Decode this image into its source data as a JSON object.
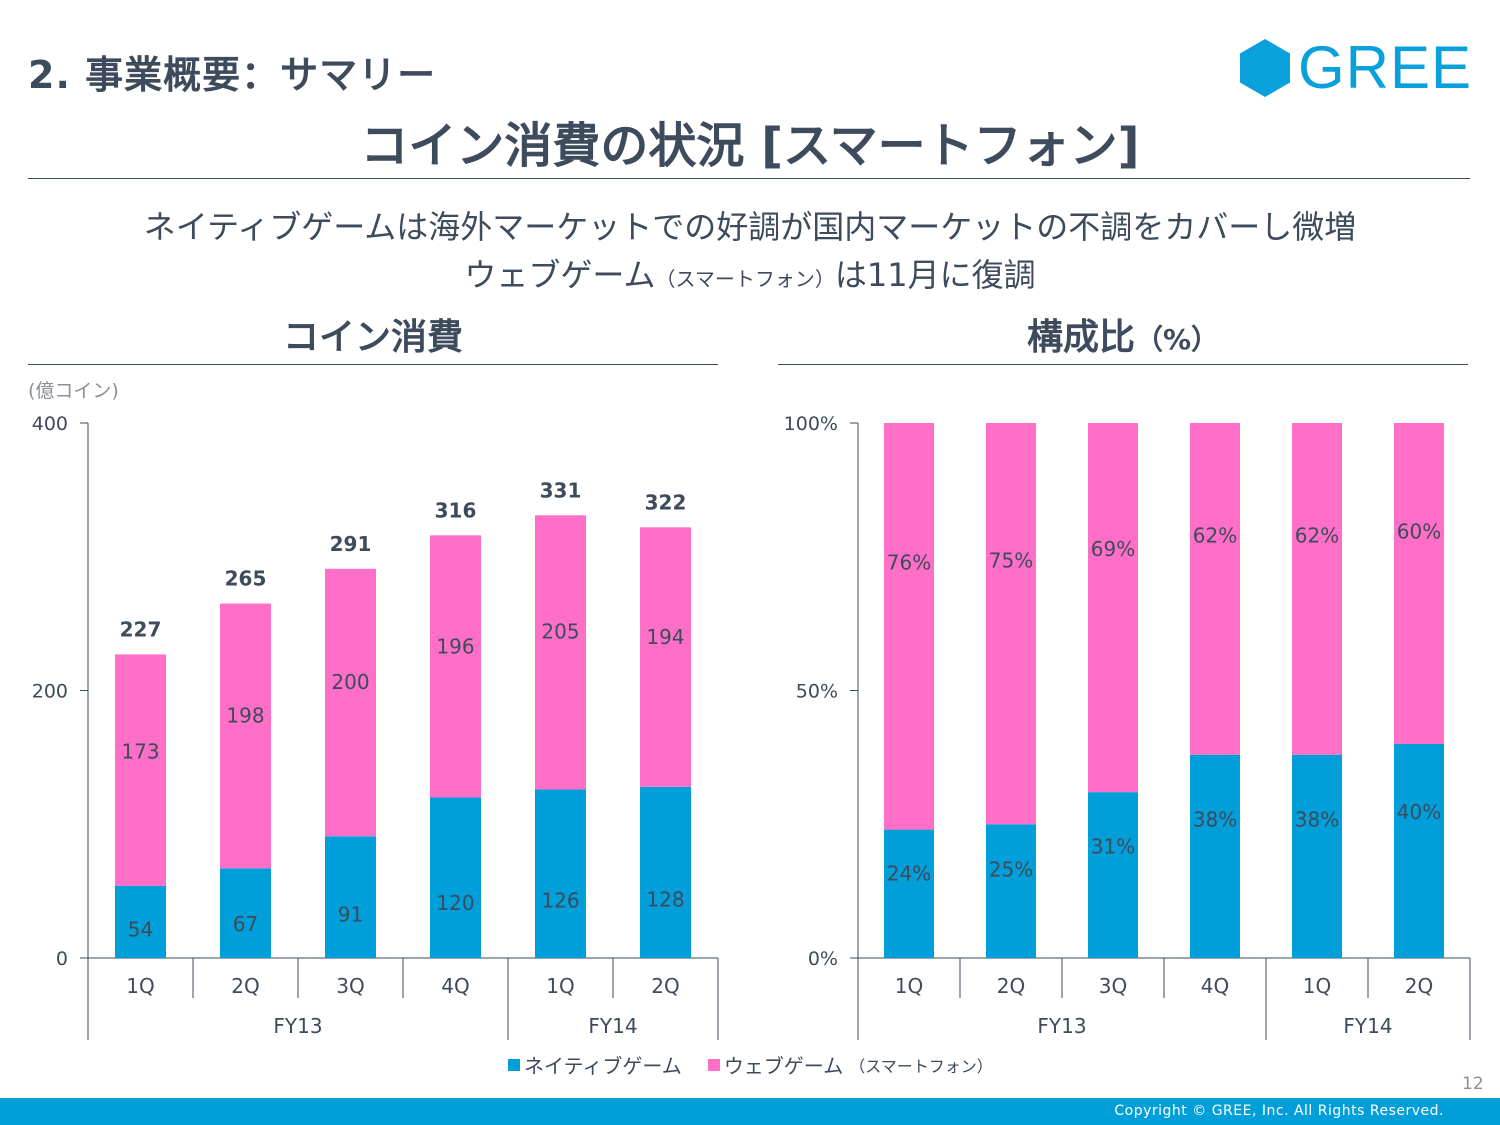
{
  "header": {
    "section_title": "2. 事業概要：サマリー",
    "logo_text": "GREE",
    "main_title": "コイン消費の状況 [スマートフォン]"
  },
  "subtitle": {
    "line1": "ネイティブゲームは海外マーケットでの好調が国内マーケットの不調をカバーし微増",
    "line2_a": "ウェブゲーム",
    "line2_small": "（スマートフォン）",
    "line2_b": "は11月に復調"
  },
  "colors": {
    "native": "#009fd9",
    "web": "#ff6ec7",
    "text": "#3d4b5c",
    "brand": "#0aa0dc"
  },
  "legend": {
    "native": "ネイティブゲーム",
    "web": "ウェブゲーム",
    "web_small": "（スマートフォン）"
  },
  "footer": {
    "page_number": "12",
    "copyright": "Copyright © GREE, Inc. All Rights Reserved."
  },
  "chart_data": [
    {
      "type": "bar",
      "stacked": true,
      "title": "コイン消費",
      "unit_label": "(億コイン)",
      "xlabel": "",
      "ylabel": "",
      "ylim": [
        0,
        400
      ],
      "yticks": [
        0,
        200,
        400
      ],
      "ytick_labels": [
        "0",
        "200",
        "400"
      ],
      "categories": [
        "1Q",
        "2Q",
        "3Q",
        "4Q",
        "1Q",
        "2Q"
      ],
      "groups": [
        {
          "label": "FY13",
          "span": 4
        },
        {
          "label": "FY14",
          "span": 2
        }
      ],
      "series": [
        {
          "name": "ネイティブゲーム",
          "values": [
            54,
            67,
            91,
            120,
            126,
            128
          ]
        },
        {
          "name": "ウェブゲーム（スマートフォン）",
          "values": [
            173,
            198,
            200,
            196,
            205,
            194
          ]
        }
      ],
      "totals": [
        227,
        265,
        291,
        316,
        331,
        322
      ],
      "grid": false,
      "legend": "bottom"
    },
    {
      "type": "bar",
      "stacked": true,
      "percent": true,
      "title": "構成比",
      "title_suffix": "（%）",
      "xlabel": "",
      "ylabel": "",
      "ylim": [
        0,
        100
      ],
      "yticks": [
        0,
        50,
        100
      ],
      "ytick_labels": [
        "0%",
        "50%",
        "100%"
      ],
      "categories": [
        "1Q",
        "2Q",
        "3Q",
        "4Q",
        "1Q",
        "2Q"
      ],
      "groups": [
        {
          "label": "FY13",
          "span": 4
        },
        {
          "label": "FY14",
          "span": 2
        }
      ],
      "series": [
        {
          "name": "ネイティブゲーム",
          "values": [
            24,
            25,
            31,
            38,
            38,
            40
          ]
        },
        {
          "name": "ウェブゲーム（スマートフォン）",
          "values": [
            76,
            75,
            69,
            62,
            62,
            60
          ]
        }
      ],
      "grid": false,
      "legend": "bottom"
    }
  ]
}
